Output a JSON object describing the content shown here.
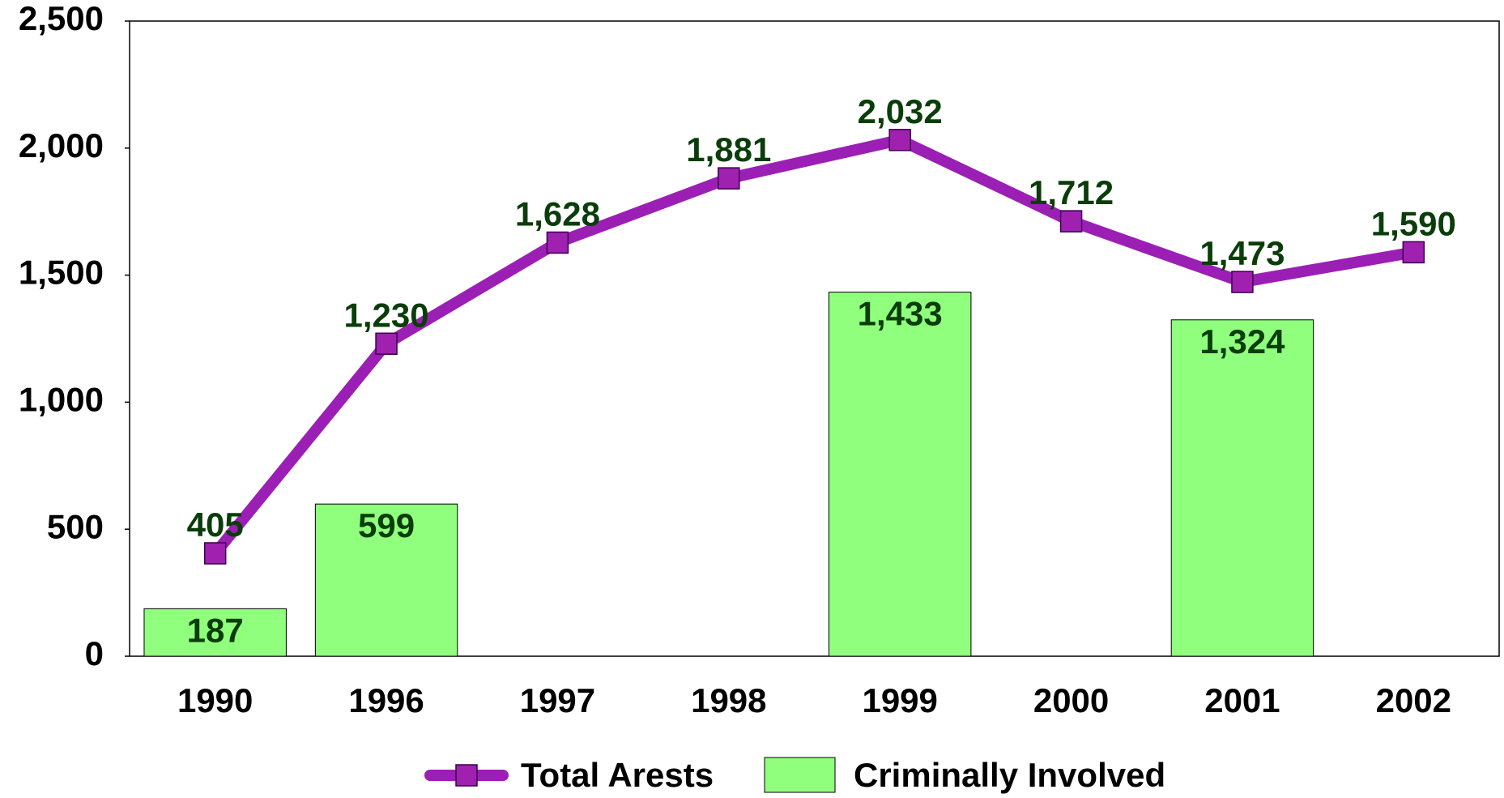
{
  "chart_data": {
    "type": "combo",
    "categories": [
      "1990",
      "1996",
      "1997",
      "1998",
      "1999",
      "2000",
      "2001",
      "2002"
    ],
    "series": [
      {
        "name": "Criminally Involved",
        "type": "bar",
        "color": "#90ff7e",
        "values": [
          187,
          599,
          null,
          null,
          1433,
          null,
          1324,
          null
        ],
        "value_labels": [
          "187",
          "599",
          null,
          null,
          "1,433",
          null,
          "1,324",
          null
        ]
      },
      {
        "name": "Total Arests",
        "type": "line",
        "color": "#9b1fb5",
        "marker_color": "#a020b0",
        "values": [
          405,
          1230,
          1628,
          1881,
          2032,
          1712,
          1473,
          1590
        ],
        "value_labels": [
          "405",
          "1,230",
          "1,628",
          "1,881",
          "2,032",
          "1,712",
          "1,473",
          "1,590"
        ]
      }
    ],
    "ylim": [
      0,
      2500
    ],
    "yticks": [
      0,
      500,
      {
        "value": 1000,
        "label": "1,000"
      },
      {
        "value": 1500,
        "label": "1,500"
      },
      {
        "value": 2000,
        "label": "2,000"
      },
      {
        "value": 2500,
        "label": "2,500"
      }
    ],
    "grid": false,
    "legend": "bottom"
  }
}
